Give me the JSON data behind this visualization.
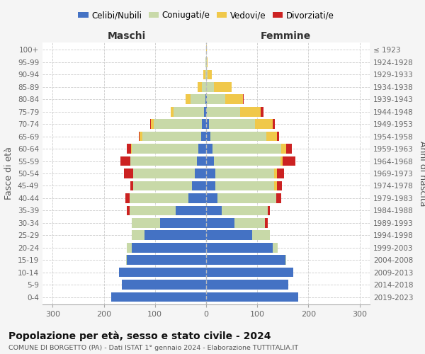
{
  "age_groups": [
    "0-4",
    "5-9",
    "10-14",
    "15-19",
    "20-24",
    "25-29",
    "30-34",
    "35-39",
    "40-44",
    "45-49",
    "50-54",
    "55-59",
    "60-64",
    "65-69",
    "70-74",
    "75-79",
    "80-84",
    "85-89",
    "90-94",
    "95-99",
    "100+"
  ],
  "birth_years": [
    "2019-2023",
    "2014-2018",
    "2009-2013",
    "2004-2008",
    "1999-2003",
    "1994-1998",
    "1989-1993",
    "1984-1988",
    "1979-1983",
    "1974-1978",
    "1969-1973",
    "1964-1968",
    "1959-1963",
    "1954-1958",
    "1949-1953",
    "1944-1948",
    "1939-1943",
    "1934-1938",
    "1929-1933",
    "1924-1928",
    "≤ 1923"
  ],
  "colors": {
    "celibi": "#4472c4",
    "coniugati": "#c8d9a8",
    "vedovi": "#f0c84a",
    "divorziati": "#cc2222"
  },
  "males": {
    "celibi": [
      185,
      165,
      170,
      155,
      145,
      120,
      90,
      60,
      35,
      28,
      22,
      18,
      15,
      10,
      8,
      4,
      2,
      0,
      0,
      0,
      0
    ],
    "coniugati": [
      0,
      0,
      0,
      2,
      10,
      25,
      55,
      90,
      115,
      115,
      120,
      130,
      130,
      115,
      95,
      60,
      28,
      8,
      2,
      1,
      0
    ],
    "vedovi": [
      0,
      0,
      0,
      0,
      0,
      0,
      0,
      0,
      0,
      0,
      0,
      0,
      2,
      5,
      5,
      5,
      10,
      8,
      3,
      1,
      0
    ],
    "divorziati": [
      0,
      0,
      0,
      0,
      0,
      0,
      0,
      5,
      8,
      5,
      18,
      20,
      8,
      2,
      2,
      0,
      0,
      0,
      0,
      0,
      0
    ]
  },
  "females": {
    "nubili": [
      180,
      160,
      170,
      155,
      130,
      90,
      55,
      30,
      22,
      18,
      18,
      15,
      12,
      8,
      5,
      2,
      2,
      0,
      0,
      0,
      0
    ],
    "coniugati": [
      0,
      0,
      0,
      2,
      10,
      35,
      60,
      90,
      115,
      115,
      115,
      130,
      135,
      110,
      90,
      65,
      35,
      15,
      3,
      1,
      0
    ],
    "vedovi": [
      0,
      0,
      0,
      0,
      0,
      0,
      0,
      0,
      0,
      5,
      5,
      5,
      10,
      20,
      35,
      40,
      35,
      35,
      8,
      2,
      1
    ],
    "divorziati": [
      0,
      0,
      0,
      0,
      0,
      0,
      5,
      5,
      10,
      10,
      15,
      25,
      10,
      5,
      5,
      5,
      2,
      0,
      0,
      0,
      0
    ]
  },
  "xlim": 320,
  "title": "Popolazione per età, sesso e stato civile - 2024",
  "subtitle": "COMUNE DI BORGETTO (PA) - Dati ISTAT 1° gennaio 2024 - Elaborazione TUTTITALIA.IT",
  "ylabel_left": "Fasce di età",
  "ylabel_right": "Anni di nascita",
  "xlabel_male": "Maschi",
  "xlabel_female": "Femmine",
  "bg_color": "#f5f5f5",
  "plot_bg": "#ffffff"
}
